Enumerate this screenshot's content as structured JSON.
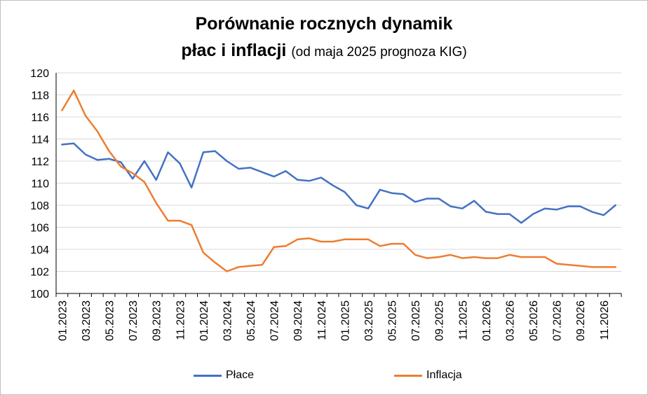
{
  "colors": {
    "place": "#4472C4",
    "inflacja": "#ED7D31",
    "grid": "#d9d9d9",
    "axis": "#000000"
  },
  "chart_data": {
    "type": "line",
    "title_line1": "Porównanie rocznych dynamik",
    "title_line2_bold": "płac i inflacji",
    "title_line2_note": "(od maja 2025 prognoza KIG)",
    "ylim": [
      100,
      120
    ],
    "yticks": [
      "100",
      "102",
      "104",
      "106",
      "108",
      "110",
      "112",
      "114",
      "116",
      "118",
      "120"
    ],
    "xtick_labels": [
      "01.2023",
      "03.2023",
      "05.2023",
      "07.2023",
      "09.2023",
      "11.2023",
      "01.2024",
      "03.2024",
      "05.2024",
      "07.2024",
      "09.2024",
      "11.2024",
      "01.2025",
      "03.2025",
      "05.2025",
      "07.2025",
      "09.2025",
      "11.2025",
      "01.2026",
      "03.2026",
      "05.2026",
      "07.2026",
      "09.2026",
      "11.2026"
    ],
    "x": [
      "01.2023",
      "02.2023",
      "03.2023",
      "04.2023",
      "05.2023",
      "06.2023",
      "07.2023",
      "08.2023",
      "09.2023",
      "10.2023",
      "11.2023",
      "12.2023",
      "01.2024",
      "02.2024",
      "03.2024",
      "04.2024",
      "05.2024",
      "06.2024",
      "07.2024",
      "08.2024",
      "09.2024",
      "10.2024",
      "11.2024",
      "12.2024",
      "01.2025",
      "02.2025",
      "03.2025",
      "04.2025",
      "05.2025",
      "06.2025",
      "07.2025",
      "08.2025",
      "09.2025",
      "10.2025",
      "11.2025",
      "12.2025",
      "01.2026",
      "02.2026",
      "03.2026",
      "04.2026",
      "05.2026",
      "06.2026",
      "07.2026",
      "08.2026",
      "09.2026",
      "10.2026",
      "11.2026",
      "12.2026"
    ],
    "series": [
      {
        "name": "Płace",
        "color": "#4472C4",
        "values": [
          113.5,
          113.6,
          112.6,
          112.1,
          112.2,
          111.9,
          110.4,
          112.0,
          110.3,
          112.8,
          111.8,
          109.6,
          112.8,
          112.9,
          112.0,
          111.3,
          111.4,
          111.0,
          110.6,
          111.1,
          110.3,
          110.2,
          110.5,
          109.8,
          109.2,
          108.0,
          107.7,
          109.4,
          109.1,
          109.0,
          108.3,
          108.6,
          108.6,
          107.9,
          107.7,
          108.4,
          107.4,
          107.2,
          107.2,
          106.4,
          107.2,
          107.7,
          107.6,
          107.9,
          107.9,
          107.4,
          107.1,
          108.0
        ]
      },
      {
        "name": "Inflacja",
        "color": "#ED7D31",
        "values": [
          116.6,
          118.4,
          116.1,
          114.7,
          112.9,
          111.5,
          110.9,
          110.1,
          108.2,
          106.6,
          106.6,
          106.2,
          103.7,
          102.8,
          102.0,
          102.4,
          102.5,
          102.6,
          104.2,
          104.3,
          104.9,
          105.0,
          104.7,
          104.7,
          104.9,
          104.9,
          104.9,
          104.3,
          104.5,
          104.5,
          103.5,
          103.2,
          103.3,
          103.5,
          103.2,
          103.3,
          103.2,
          103.2,
          103.5,
          103.3,
          103.3,
          103.3,
          102.7,
          102.6,
          102.5,
          102.4,
          102.4,
          102.4
        ]
      }
    ],
    "legend_position": "bottom",
    "grid": true
  }
}
